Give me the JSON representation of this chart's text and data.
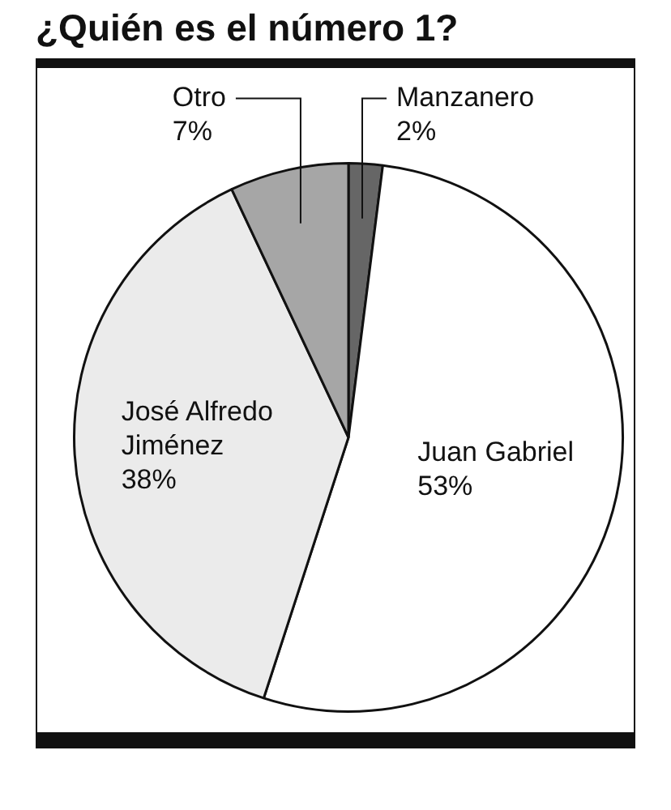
{
  "chart_data": {
    "type": "pie",
    "title": "¿Quién es el número 1?",
    "categories": [
      "Manzanero",
      "Juan Gabriel",
      "José Alfredo Jiménez",
      "Otro"
    ],
    "values": [
      2,
      53,
      38,
      7
    ],
    "colors": [
      "#666666",
      "#ffffff",
      "#ebebeb",
      "#a6a6a6"
    ],
    "value_labels": [
      "2%",
      "53%",
      "38%",
      "7%"
    ],
    "legend": false
  }
}
